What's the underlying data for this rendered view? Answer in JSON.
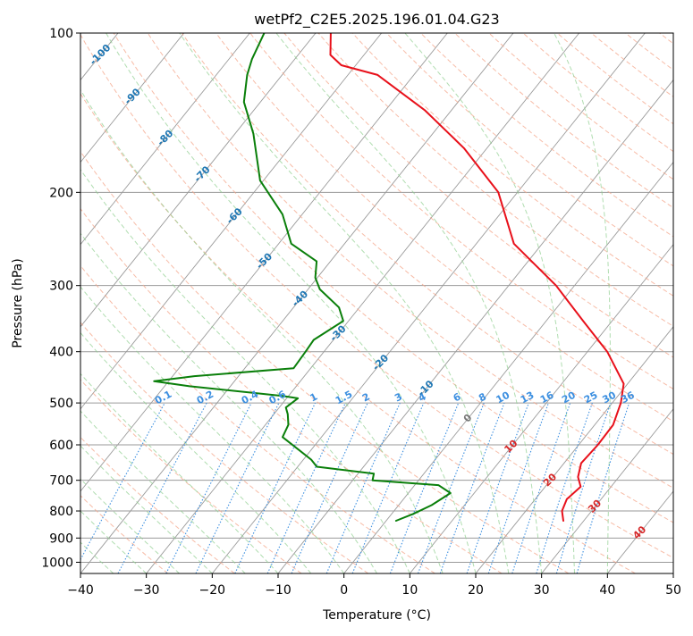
{
  "chart_data": {
    "type": "skew-t",
    "title": "wetPf2_C2E5.2025.196.01.04.G23",
    "xlabel": "Temperature (°C)",
    "ylabel": "Pressure (hPa)",
    "xlim": [
      -40,
      50
    ],
    "ylim_hpa": [
      1050,
      100
    ],
    "y_scale": "log",
    "grid": true,
    "x_ticks": [
      -40,
      -30,
      -20,
      -10,
      0,
      10,
      20,
      30,
      40,
      50
    ],
    "x_tick_labels": [
      "−40",
      "−30",
      "−20",
      "−10",
      "0",
      "10",
      "20",
      "30",
      "40",
      "50"
    ],
    "y_ticks": [
      100,
      200,
      300,
      400,
      500,
      600,
      700,
      800,
      900,
      1000
    ],
    "y_tick_labels": [
      "100",
      "200",
      "300",
      "400",
      "500",
      "600",
      "700",
      "800",
      "900",
      "1000"
    ],
    "colors": {
      "temperature": "#e8101a",
      "dewpoint": "#0a7f0a",
      "isotherms": "#9a9a9a",
      "dry_adiabats": "#f4a58a",
      "moist_adiabats": "#8fcf8f",
      "mixing_ratio": "#3c8fe0",
      "ice_isotherms": "#1f77b4",
      "warm_isotherm_labels": "#d62728",
      "zero_isotherm_label": "#777777"
    },
    "series": [
      {
        "name": "",
        "role": "temperature",
        "points": [
          [
            26.9,
            835
          ],
          [
            25.5,
            800
          ],
          [
            24.8,
            760
          ],
          [
            25.4,
            720
          ],
          [
            23.8,
            690
          ],
          [
            22.6,
            650
          ],
          [
            22.9,
            600
          ],
          [
            22.8,
            550
          ],
          [
            21.3,
            500
          ],
          [
            19.4,
            460
          ],
          [
            13.0,
            400
          ],
          [
            5.6,
            350
          ],
          [
            -2.8,
            300
          ],
          [
            -14.3,
            250
          ],
          [
            -22.9,
            200
          ],
          [
            -33.5,
            165
          ],
          [
            -44.0,
            140
          ],
          [
            -55.5,
            120
          ],
          [
            -62.2,
            115
          ],
          [
            -65.1,
            110
          ],
          [
            -67.7,
            100
          ]
        ]
      },
      {
        "name": "",
        "role": "dewpoint",
        "points": [
          [
            1.5,
            835
          ],
          [
            3.3,
            810
          ],
          [
            5.0,
            780
          ],
          [
            6.4,
            740
          ],
          [
            3.6,
            715
          ],
          [
            -7.0,
            700
          ],
          [
            -7.6,
            680
          ],
          [
            -17.1,
            660
          ],
          [
            -18.8,
            640
          ],
          [
            -25.9,
            580
          ],
          [
            -26.5,
            550
          ],
          [
            -27.9,
            525
          ],
          [
            -29.0,
            510
          ],
          [
            -28.3,
            490
          ],
          [
            -30.9,
            485
          ],
          [
            -46.2,
            465
          ],
          [
            -52.2,
            455
          ],
          [
            -46.7,
            445
          ],
          [
            -32.6,
            430
          ],
          [
            -32.8,
            400
          ],
          [
            -33.0,
            380
          ],
          [
            -30.8,
            350
          ],
          [
            -33.1,
            330
          ],
          [
            -38.2,
            305
          ],
          [
            -40.3,
            290
          ],
          [
            -42.1,
            270
          ],
          [
            -48.1,
            250
          ],
          [
            -53.0,
            220
          ],
          [
            -60.5,
            190
          ],
          [
            -67.2,
            155
          ],
          [
            -72.5,
            135
          ],
          [
            -75.3,
            120
          ],
          [
            -76.5,
            112
          ],
          [
            -77.8,
            100
          ]
        ]
      }
    ],
    "ice_isotherm_labels": [
      "-100",
      "-90",
      "-80",
      "-70",
      "-60",
      "-50",
      "-40",
      "-30",
      "-20",
      "-10"
    ],
    "ice_isotherm_values": [
      -100,
      -90,
      -80,
      -70,
      -60,
      -50,
      -40,
      -30,
      -20,
      -10
    ],
    "zero_isotherm_label": "0",
    "warm_isotherm_labels": [
      "10",
      "20",
      "30",
      "40"
    ],
    "warm_isotherm_values": [
      10,
      20,
      30,
      40
    ],
    "mixing_ratio_labels": [
      "0.1",
      "0.2",
      "0.4",
      "0.6",
      "1",
      "1.5",
      "2",
      "3",
      "4",
      "6",
      "8",
      "10",
      "13",
      "16",
      "20",
      "25",
      "30",
      "36"
    ],
    "mixing_ratio_values": [
      0.1,
      0.2,
      0.4,
      0.6,
      1,
      1.5,
      2,
      3,
      4,
      6,
      8,
      10,
      13,
      16,
      20,
      25,
      30,
      36
    ]
  }
}
